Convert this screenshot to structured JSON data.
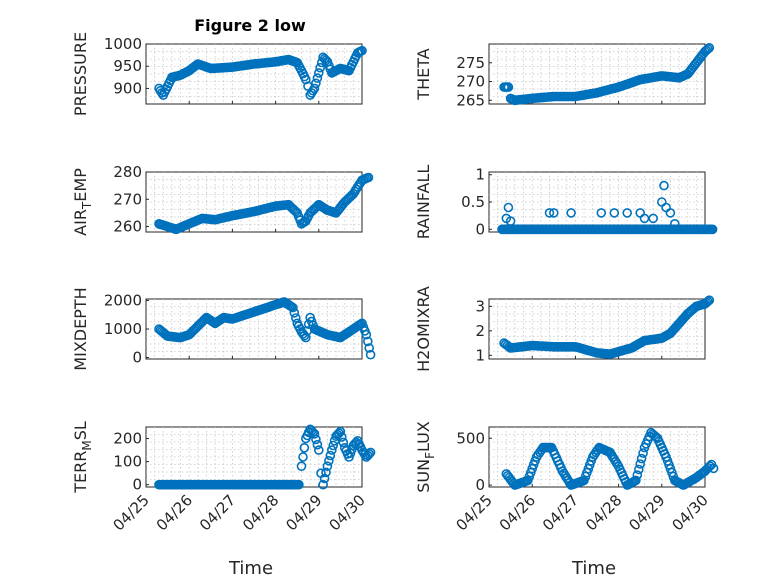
{
  "figure_title": "Figure 2 low",
  "xlabel": "Time",
  "marker_color": "#0072BD",
  "x_ticks": [
    "04/25",
    "04/26",
    "04/27",
    "04/28",
    "04/29",
    "04/30"
  ],
  "chart_data": [
    {
      "type": "scatter",
      "id": "pressure",
      "ylabel": "PRESSURE",
      "xlim": [
        0,
        5
      ],
      "ylim": [
        865,
        1000
      ],
      "yticks": [
        900,
        950,
        1000
      ],
      "grid": true,
      "curve": [
        [
          0.3,
          900
        ],
        [
          0.4,
          885
        ],
        [
          0.5,
          905
        ],
        [
          0.6,
          925
        ],
        [
          0.8,
          930
        ],
        [
          1.0,
          940
        ],
        [
          1.2,
          955
        ],
        [
          1.35,
          950
        ],
        [
          1.5,
          945
        ],
        [
          2.0,
          948
        ],
        [
          2.5,
          955
        ],
        [
          3.0,
          960
        ],
        [
          3.3,
          965
        ],
        [
          3.5,
          958
        ],
        [
          3.6,
          940
        ],
        [
          3.7,
          920
        ],
        [
          3.75,
          905
        ],
        [
          3.8,
          885
        ],
        [
          3.9,
          900
        ],
        [
          4.0,
          935
        ],
        [
          4.1,
          970
        ],
        [
          4.2,
          960
        ],
        [
          4.3,
          935
        ],
        [
          4.5,
          945
        ],
        [
          4.7,
          940
        ],
        [
          4.9,
          980
        ],
        [
          5.0,
          985
        ]
      ]
    },
    {
      "type": "scatter",
      "id": "theta",
      "ylabel": "THETA",
      "xlim": [
        0,
        5
      ],
      "ylim": [
        264,
        280
      ],
      "yticks": [
        265,
        270,
        275
      ],
      "grid": true,
      "curve": [
        [
          0.35,
          268.5
        ],
        [
          0.45,
          268.5
        ],
        [
          0.5,
          265.5
        ],
        [
          0.6,
          265
        ],
        [
          1.0,
          265.5
        ],
        [
          1.5,
          266
        ],
        [
          2.0,
          266
        ],
        [
          2.5,
          267
        ],
        [
          3.0,
          268.5
        ],
        [
          3.5,
          270.5
        ],
        [
          4.0,
          271.5
        ],
        [
          4.4,
          271
        ],
        [
          4.6,
          272
        ],
        [
          4.8,
          275
        ],
        [
          5.0,
          278
        ],
        [
          5.1,
          279
        ]
      ]
    },
    {
      "type": "scatter",
      "id": "air_temp",
      "ylabel": "AIR_TEMP",
      "xlim": [
        0,
        5
      ],
      "ylim": [
        258,
        280
      ],
      "yticks": [
        260,
        270,
        280
      ],
      "grid": true,
      "curve": [
        [
          0.3,
          261
        ],
        [
          0.5,
          260
        ],
        [
          0.7,
          259
        ],
        [
          1.0,
          261
        ],
        [
          1.3,
          263
        ],
        [
          1.6,
          262.5
        ],
        [
          2.0,
          264
        ],
        [
          2.5,
          265.5
        ],
        [
          3.0,
          267.5
        ],
        [
          3.3,
          268
        ],
        [
          3.5,
          265
        ],
        [
          3.6,
          261
        ],
        [
          3.7,
          262
        ],
        [
          3.8,
          265
        ],
        [
          4.0,
          268
        ],
        [
          4.2,
          266
        ],
        [
          4.4,
          265
        ],
        [
          4.6,
          269
        ],
        [
          4.8,
          272
        ],
        [
          5.0,
          277
        ],
        [
          5.15,
          278
        ]
      ]
    },
    {
      "type": "scatter",
      "id": "rainfall",
      "ylabel": "RAINFALL",
      "xlim": [
        0,
        5
      ],
      "ylim": [
        -0.05,
        1.05
      ],
      "yticks": [
        0,
        0.5,
        1
      ],
      "ytick_labels": [
        "0",
        "0.5",
        "1"
      ],
      "grid": true,
      "baseline": [
        0.3,
        5.2
      ],
      "spikes": [
        [
          0.4,
          0.2
        ],
        [
          0.45,
          0.4
        ],
        [
          0.5,
          0.15
        ],
        [
          1.4,
          0.3
        ],
        [
          1.5,
          0.3
        ],
        [
          1.9,
          0.3
        ],
        [
          2.6,
          0.3
        ],
        [
          2.9,
          0.3
        ],
        [
          3.2,
          0.3
        ],
        [
          3.5,
          0.3
        ],
        [
          3.6,
          0.2
        ],
        [
          3.8,
          0.2
        ],
        [
          4.0,
          0.5
        ],
        [
          4.05,
          0.8
        ],
        [
          4.1,
          0.4
        ],
        [
          4.2,
          0.3
        ],
        [
          4.3,
          0.1
        ]
      ]
    },
    {
      "type": "scatter",
      "id": "mixdepth",
      "ylabel": "MIXDEPTH",
      "xlim": [
        0,
        5
      ],
      "ylim": [
        -50,
        2050
      ],
      "yticks": [
        0,
        1000,
        2000
      ],
      "grid": true,
      "curve": [
        [
          0.3,
          1000
        ],
        [
          0.5,
          750
        ],
        [
          0.8,
          700
        ],
        [
          1.0,
          800
        ],
        [
          1.2,
          1100
        ],
        [
          1.4,
          1400
        ],
        [
          1.6,
          1200
        ],
        [
          1.8,
          1400
        ],
        [
          2.0,
          1350
        ],
        [
          2.5,
          1600
        ],
        [
          3.0,
          1850
        ],
        [
          3.2,
          1950
        ],
        [
          3.4,
          1750
        ],
        [
          3.5,
          1200
        ],
        [
          3.6,
          900
        ],
        [
          3.7,
          700
        ],
        [
          3.8,
          1400
        ],
        [
          3.9,
          1000
        ],
        [
          4.2,
          800
        ],
        [
          4.5,
          700
        ],
        [
          4.8,
          1000
        ],
        [
          5.0,
          1200
        ],
        [
          5.1,
          800
        ],
        [
          5.2,
          100
        ]
      ]
    },
    {
      "type": "scatter",
      "id": "h2omixra",
      "ylabel": "H2OMIXRA",
      "xlim": [
        0,
        5
      ],
      "ylim": [
        0.85,
        3.3
      ],
      "yticks": [
        1,
        2,
        3
      ],
      "grid": true,
      "curve": [
        [
          0.35,
          1.5
        ],
        [
          0.5,
          1.3
        ],
        [
          1.0,
          1.4
        ],
        [
          1.5,
          1.35
        ],
        [
          2.0,
          1.35
        ],
        [
          2.5,
          1.1
        ],
        [
          2.8,
          1.05
        ],
        [
          3.0,
          1.15
        ],
        [
          3.3,
          1.3
        ],
        [
          3.6,
          1.6
        ],
        [
          4.0,
          1.7
        ],
        [
          4.2,
          1.9
        ],
        [
          4.4,
          2.3
        ],
        [
          4.6,
          2.7
        ],
        [
          4.8,
          3.0
        ],
        [
          5.0,
          3.1
        ],
        [
          5.1,
          3.25
        ]
      ]
    },
    {
      "type": "scatter",
      "id": "terr_msl",
      "ylabel": "TERR_MSL",
      "xlim": [
        0,
        5
      ],
      "ylim": [
        -10,
        250
      ],
      "yticks": [
        0,
        100,
        200
      ],
      "grid": true,
      "flat": [
        0.3,
        3.55
      ],
      "curve": [
        [
          3.6,
          80
        ],
        [
          3.7,
          200
        ],
        [
          3.8,
          240
        ],
        [
          3.9,
          220
        ],
        [
          4.0,
          150
        ],
        [
          4.05,
          50
        ],
        [
          4.1,
          0
        ],
        [
          4.2,
          80
        ],
        [
          4.3,
          150
        ],
        [
          4.4,
          210
        ],
        [
          4.5,
          230
        ],
        [
          4.6,
          160
        ],
        [
          4.7,
          120
        ],
        [
          4.8,
          170
        ],
        [
          4.9,
          190
        ],
        [
          5.0,
          150
        ],
        [
          5.1,
          120
        ],
        [
          5.2,
          140
        ]
      ]
    },
    {
      "type": "scatter",
      "id": "sun_flux",
      "ylabel": "SUN_FLUX",
      "xlim": [
        0,
        5
      ],
      "ylim": [
        -20,
        620
      ],
      "yticks": [
        0,
        500
      ],
      "grid": true,
      "curve": [
        [
          0.4,
          120
        ],
        [
          0.6,
          0
        ],
        [
          0.9,
          50
        ],
        [
          1.1,
          300
        ],
        [
          1.25,
          400
        ],
        [
          1.45,
          400
        ],
        [
          1.7,
          150
        ],
        [
          1.9,
          0
        ],
        [
          2.2,
          50
        ],
        [
          2.4,
          300
        ],
        [
          2.55,
          400
        ],
        [
          2.8,
          350
        ],
        [
          3.0,
          200
        ],
        [
          3.2,
          0
        ],
        [
          3.4,
          50
        ],
        [
          3.6,
          400
        ],
        [
          3.75,
          560
        ],
        [
          3.9,
          500
        ],
        [
          4.1,
          300
        ],
        [
          4.3,
          50
        ],
        [
          4.5,
          0
        ],
        [
          4.8,
          80
        ],
        [
          5.0,
          150
        ],
        [
          5.15,
          220
        ],
        [
          5.2,
          180
        ]
      ]
    }
  ]
}
